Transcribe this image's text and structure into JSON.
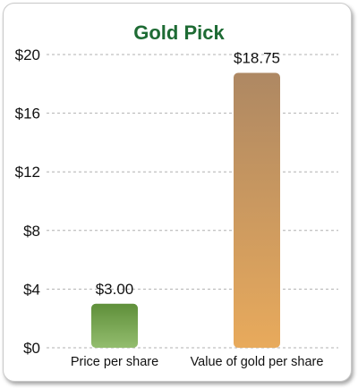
{
  "chart_data": {
    "type": "bar",
    "title": "Gold Pick",
    "categories": [
      "Price per share",
      "Value of gold per share"
    ],
    "values": [
      3.0,
      18.75
    ],
    "data_labels": [
      "$3.00",
      "$18.75"
    ],
    "ylim": [
      0,
      20
    ],
    "yticks": [
      0,
      4,
      8,
      12,
      16,
      20
    ],
    "ytick_labels": [
      "$0",
      "$4",
      "$8",
      "$12",
      "$16",
      "$20"
    ],
    "xlabel": "",
    "ylabel": "",
    "grid": "horizontal dashed",
    "legend": "none"
  },
  "colors": {
    "title": "#1e6b34",
    "bar1_top": "#5f8f3a",
    "bar1_bottom": "#93bd6e",
    "bar2_top": "#ae8863",
    "bar2_bottom": "#e8aa5c",
    "gridline": "#b0b0b0"
  }
}
